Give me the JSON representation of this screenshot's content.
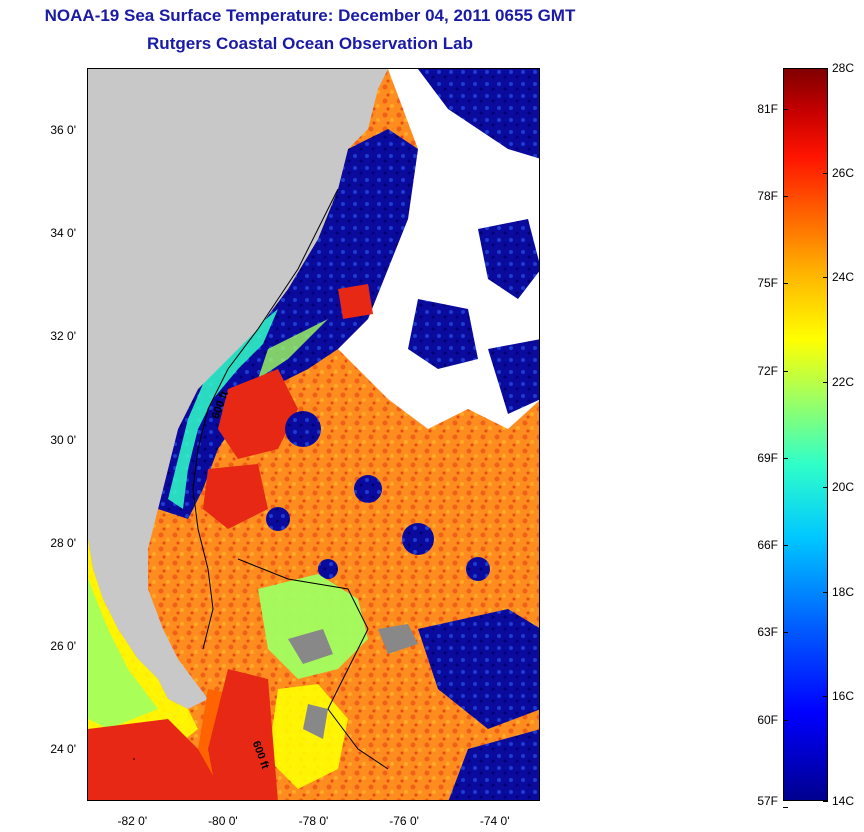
{
  "header": {
    "title": "NOAA-19 Sea Surface Temperature:  December 04, 2011 0655 GMT",
    "subtitle": "Rutgers Coastal Ocean Observation Lab"
  },
  "map": {
    "lat_range": [
      23,
      37.2
    ],
    "lon_range": [
      -83,
      -73
    ],
    "lat_labels": [
      {
        "value": 36,
        "text": "36 0'"
      },
      {
        "value": 34,
        "text": "34 0'"
      },
      {
        "value": 32,
        "text": "32 0'"
      },
      {
        "value": 30,
        "text": "30 0'"
      },
      {
        "value": 28,
        "text": "28 0'"
      },
      {
        "value": 26,
        "text": "26 0'"
      },
      {
        "value": 24,
        "text": "24 0'"
      }
    ],
    "lon_labels": [
      {
        "value": -82,
        "text": "-82 0'"
      },
      {
        "value": -80,
        "text": "-80 0'"
      },
      {
        "value": -78,
        "text": "-78 0'"
      },
      {
        "value": -76,
        "text": "-76 0'"
      },
      {
        "value": -74,
        "text": "-74 0'"
      }
    ],
    "contour_labels": [
      "600 ft",
      "600 ft"
    ],
    "colors": {
      "land": "#c8c8c8",
      "cloud": "#ffffff",
      "cold": "#0a0a9c",
      "warm": "#ff8c1e",
      "hot": "#e62814"
    }
  },
  "colorbar": {
    "range_c": [
      14,
      28
    ],
    "celsius_labels": [
      {
        "value": 28,
        "text": "28C"
      },
      {
        "value": 26,
        "text": "26C"
      },
      {
        "value": 24,
        "text": "24C"
      },
      {
        "value": 22,
        "text": "22C"
      },
      {
        "value": 20,
        "text": "20C"
      },
      {
        "value": 18,
        "text": "18C"
      },
      {
        "value": 16,
        "text": "16C"
      },
      {
        "value": 14,
        "text": "14C"
      }
    ],
    "fahrenheit_labels": [
      {
        "value": 81,
        "text": "81F"
      },
      {
        "value": 78,
        "text": "78F"
      },
      {
        "value": 75,
        "text": "75F"
      },
      {
        "value": 72,
        "text": "72F"
      },
      {
        "value": 69,
        "text": "69F"
      },
      {
        "value": 66,
        "text": "66F"
      },
      {
        "value": 63,
        "text": "63F"
      },
      {
        "value": 60,
        "text": "60F"
      },
      {
        "value": 57,
        "text": "57F"
      }
    ]
  }
}
